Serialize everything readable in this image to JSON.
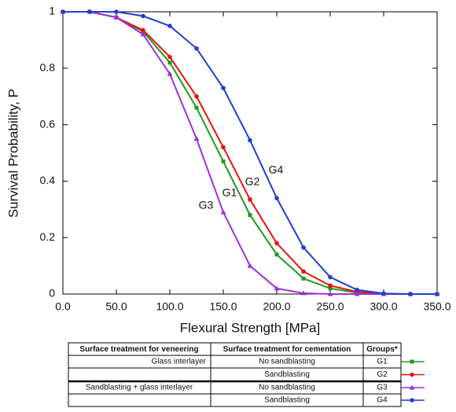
{
  "chart_data": {
    "type": "line",
    "x_label": "Flexural Strength [MPa]",
    "y_label": "Survival Probability, P",
    "x": [
      0,
      25,
      50,
      75,
      100,
      125,
      150,
      175,
      200,
      225,
      250,
      275,
      300,
      325,
      350
    ],
    "series": [
      {
        "name": "G1",
        "color": "#1e9a1e",
        "marker": "square",
        "values": [
          1,
          1,
          0.98,
          0.93,
          0.82,
          0.66,
          0.47,
          0.28,
          0.14,
          0.055,
          0.02,
          0.005,
          0,
          0,
          0
        ]
      },
      {
        "name": "G2",
        "color": "#e8140c",
        "marker": "circle",
        "values": [
          1,
          1,
          0.98,
          0.935,
          0.84,
          0.7,
          0.52,
          0.335,
          0.18,
          0.08,
          0.03,
          0.008,
          0.001,
          0,
          0
        ]
      },
      {
        "name": "G3",
        "color": "#9b30e0",
        "marker": "triangle",
        "values": [
          1,
          1,
          0.98,
          0.92,
          0.78,
          0.55,
          0.29,
          0.1,
          0.02,
          0.003,
          0,
          0,
          0,
          0,
          0
        ]
      },
      {
        "name": "G4",
        "color": "#1f3fd0",
        "marker": "circle",
        "values": [
          1,
          1,
          1,
          0.985,
          0.95,
          0.87,
          0.73,
          0.545,
          0.34,
          0.165,
          0.06,
          0.015,
          0.002,
          0,
          0
        ]
      }
    ],
    "annotations": [
      "G4",
      "G2",
      "G1",
      "G3"
    ],
    "xlim": [
      0,
      350
    ],
    "xticks": [
      {
        "value": 0,
        "label": "0.0"
      },
      {
        "value": 50,
        "label": "50.0"
      },
      {
        "value": 100,
        "label": "100.0"
      },
      {
        "value": 150,
        "label": "150.0"
      },
      {
        "value": 200,
        "label": "200.0"
      },
      {
        "value": 250,
        "label": "250.0"
      },
      {
        "value": 300,
        "label": "300.0"
      },
      {
        "value": 350,
        "label": "350.0"
      }
    ],
    "ylim": [
      0,
      1
    ],
    "yticks": [
      0,
      0.2,
      0.4,
      0.6,
      0.8,
      1
    ],
    "grid": false
  },
  "table": {
    "header": [
      "Surface treatment for veneering",
      "Surface treatment for cementation",
      "Groups*"
    ],
    "rows": [
      [
        "Glass interlayer",
        "No sandblasting"
      ],
      [
        null,
        "Sandblasting"
      ],
      [
        "Sandblasting + glass interlayer",
        "No sandblasting"
      ],
      [
        null,
        "Sandblasting"
      ]
    ]
  }
}
